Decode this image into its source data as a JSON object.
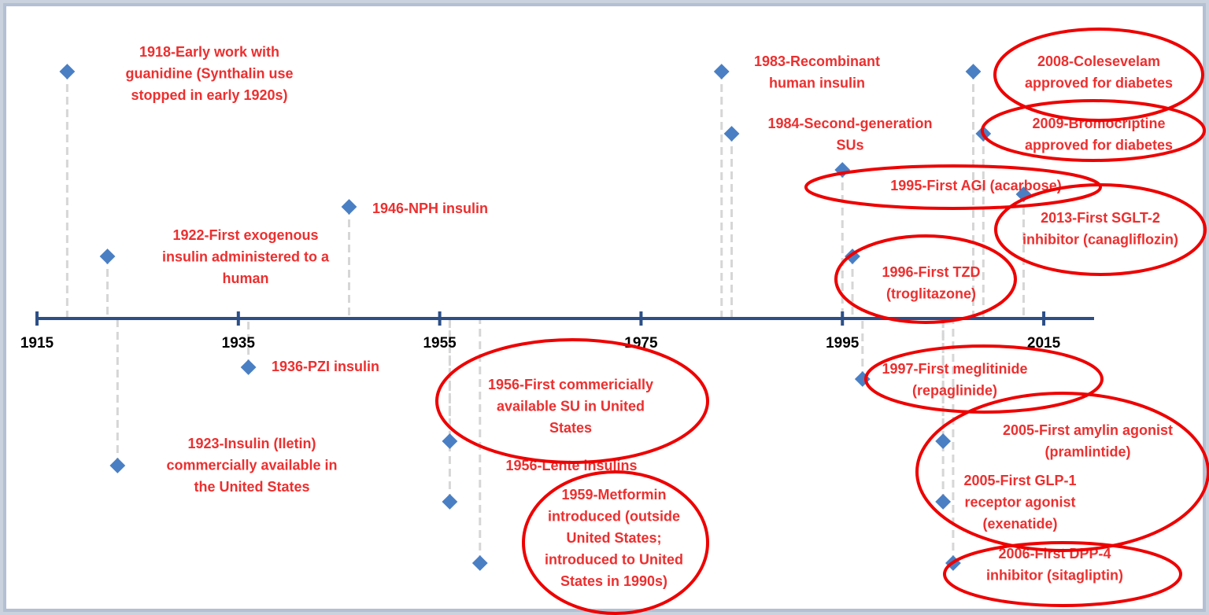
{
  "axis": {
    "lim": [
      1915,
      2020
    ],
    "ticks": [
      1915,
      1935,
      1955,
      1975,
      1995,
      2015
    ]
  },
  "events": [
    {
      "year": 1918,
      "lines": [
        "1918-Early work with",
        "guanidine (Synthalin use",
        "stopped in early 1920s)"
      ]
    },
    {
      "year": 1922,
      "lines": [
        "1922-First exogenous",
        "insulin administered to a",
        "human"
      ]
    },
    {
      "year": 1923,
      "lines": [
        "1923-Insulin (Iletin)",
        "commercially available in",
        "the United States"
      ]
    },
    {
      "year": 1936,
      "lines": [
        "1936-PZI insulin"
      ]
    },
    {
      "year": 1946,
      "lines": [
        "1946-NPH insulin"
      ]
    },
    {
      "year": 1956,
      "lines": [
        "1956-First commericially",
        "available SU in United",
        "States"
      ]
    },
    {
      "year": 1956,
      "lines": [
        "1956-Lente insulins"
      ]
    },
    {
      "year": 1959,
      "lines": [
        "1959-Metformin",
        "introduced (outside",
        "United States;",
        "introduced to United",
        "States in 1990s)"
      ]
    },
    {
      "year": 1983,
      "lines": [
        "1983-Recombinant",
        "human insulin"
      ]
    },
    {
      "year": 1984,
      "lines": [
        "1984-Second-generation",
        "SUs"
      ]
    },
    {
      "year": 1995,
      "lines": [
        "1995-First AGI (acarbose)"
      ]
    },
    {
      "year": 1996,
      "lines": [
        "1996-First TZD",
        "(troglitazone)"
      ]
    },
    {
      "year": 1997,
      "lines": [
        "1997-First meglitinide",
        "(repaglinide)"
      ]
    },
    {
      "year": 2005,
      "lines": [
        "2005-First amylin agonist",
        "(pramlintide)"
      ]
    },
    {
      "year": 2005,
      "lines": [
        "2005-First GLP-1",
        "receptor agonist",
        "(exenatide)"
      ]
    },
    {
      "year": 2006,
      "lines": [
        "2006-First DPP-4",
        "inhibitor (sitagliptin)"
      ]
    },
    {
      "year": 2008,
      "lines": [
        "2008-Colesevelam",
        "approved for diabetes"
      ]
    },
    {
      "year": 2009,
      "lines": [
        "2009-Bromocriptine",
        "approved for diabetes"
      ]
    },
    {
      "year": 2013,
      "lines": [
        "2013-First SGLT-2",
        "inhibitor (canagliflozin)"
      ]
    }
  ]
}
